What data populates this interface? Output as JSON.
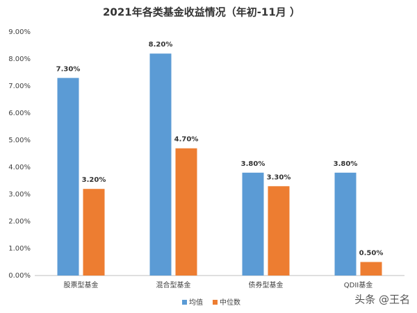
{
  "chart_data": {
    "type": "bar",
    "title": "2021年各类基金收益情况（年初-11月 ）",
    "categories": [
      "股票型基金",
      "混合型基金",
      "债券型基金",
      "QDII基金"
    ],
    "series": [
      {
        "name": "均值",
        "color": "#5b9bd5",
        "values": [
          7.3,
          8.2,
          3.8,
          3.8
        ],
        "value_labels": [
          "7.30%",
          "8.20%",
          "3.80%",
          "3.80%"
        ]
      },
      {
        "name": "中位数",
        "color": "#ed7d31",
        "values": [
          3.2,
          4.7,
          3.3,
          0.5
        ],
        "value_labels": [
          "3.20%",
          "4.70%",
          "3.30%",
          "0.50%"
        ]
      }
    ],
    "ylim": [
      0,
      9
    ],
    "yticks": [
      {
        "value": 0,
        "label": "0.00%"
      },
      {
        "value": 1,
        "label": "1.00%"
      },
      {
        "value": 2,
        "label": "2.00%"
      },
      {
        "value": 3,
        "label": "3.00%"
      },
      {
        "value": 4,
        "label": "4.00%"
      },
      {
        "value": 5,
        "label": "5.00%"
      },
      {
        "value": 6,
        "label": "6.00%"
      },
      {
        "value": 7,
        "label": "7.00%"
      },
      {
        "value": 8,
        "label": "8.00%"
      },
      {
        "value": 9,
        "label": "9.00%"
      }
    ],
    "grid": false,
    "watermark": "头条 @王名"
  }
}
